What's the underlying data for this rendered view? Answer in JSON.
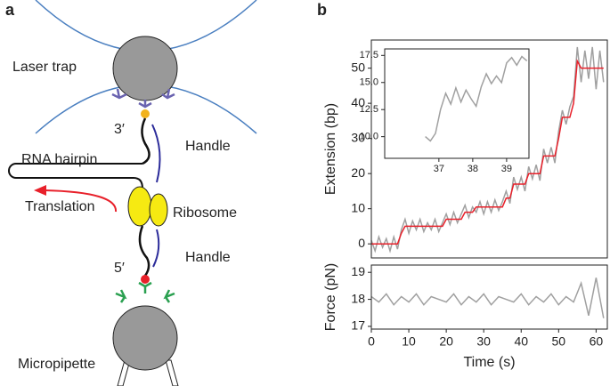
{
  "panel_labels": [
    "a",
    "b"
  ],
  "diagram": {
    "laser_trap": "Laser trap",
    "three_prime": "3′",
    "handle_top": "Handle",
    "rna_hairpin": "RNA hairpin",
    "translation": "Translation",
    "ribosome": "Ribosome",
    "handle_bottom": "Handle",
    "five_prime": "5′",
    "micropipette": "Micropipette"
  },
  "chart_data": [
    {
      "type": "line",
      "ylabel": "Extension (bp)",
      "xlim": [
        0,
        63
      ],
      "ylim": [
        -4,
        58
      ],
      "yticks": [
        0,
        10,
        20,
        30,
        40,
        50
      ],
      "x": [
        0,
        1,
        2,
        3,
        4,
        5,
        6,
        7,
        8,
        9,
        10,
        11,
        12,
        13,
        14,
        15,
        16,
        17,
        18,
        19,
        20,
        21,
        22,
        23,
        24,
        25,
        26,
        27,
        28,
        29,
        30,
        31,
        32,
        33,
        34,
        35,
        36,
        37,
        38,
        39,
        40,
        41,
        42,
        43,
        44,
        45,
        46,
        47,
        48,
        49,
        50,
        51,
        52,
        53,
        54,
        55,
        56,
        57,
        58,
        59,
        60,
        61,
        62
      ],
      "series": [
        {
          "color": "#a0a0a0",
          "values": [
            1,
            -2,
            2,
            -1,
            1.5,
            -2,
            2,
            -1.5,
            4,
            7,
            3,
            6.5,
            4,
            7,
            3.5,
            6,
            4,
            7,
            3.5,
            6,
            8.5,
            5.5,
            9,
            6,
            8.5,
            11,
            7.5,
            10.5,
            9,
            12,
            8.5,
            12,
            9,
            12.5,
            9.5,
            12,
            15,
            11.5,
            19,
            15.5,
            19,
            15,
            22,
            18.5,
            22.5,
            18,
            27,
            23,
            27.5,
            23,
            32,
            38,
            34,
            39,
            42,
            56,
            46,
            55,
            47,
            56,
            44,
            55,
            46
          ]
        },
        {
          "color": "#e8202a",
          "values": [
            0,
            0,
            0,
            0,
            0,
            0,
            0,
            0,
            3,
            5,
            5,
            5,
            5,
            5,
            5,
            5,
            5,
            5,
            5,
            5,
            7,
            7,
            7,
            7,
            7,
            9,
            9,
            9,
            10.5,
            10.5,
            10.5,
            10.5,
            10.5,
            10.5,
            10.5,
            10.5,
            13,
            13,
            17,
            17,
            17,
            17,
            20,
            20,
            20,
            20,
            25,
            25,
            25,
            25,
            30,
            36,
            36,
            36,
            40,
            52,
            50,
            50,
            50,
            50,
            50,
            50,
            50
          ]
        }
      ]
    },
    {
      "type": "line",
      "ylabel": "Force (pN)",
      "xlabel": "Time (s)",
      "xlim": [
        0,
        63
      ],
      "ylim": [
        16.9,
        19.27
      ],
      "yticks": [
        17,
        18,
        19
      ],
      "xticks": [
        0,
        10,
        20,
        30,
        40,
        50,
        60
      ],
      "x": [
        0,
        2,
        4,
        6,
        8,
        10,
        12,
        14,
        16,
        18,
        20,
        22,
        24,
        26,
        28,
        30,
        32,
        34,
        36,
        38,
        40,
        42,
        44,
        46,
        48,
        50,
        52,
        54,
        56,
        58,
        60,
        62
      ],
      "series": [
        {
          "color": "#a0a0a0",
          "values": [
            18.1,
            17.9,
            18.2,
            17.8,
            18.1,
            17.9,
            18.2,
            17.8,
            18.1,
            18.0,
            17.9,
            18.2,
            17.8,
            18.1,
            17.9,
            18.2,
            17.8,
            18.1,
            18.0,
            17.9,
            18.2,
            17.8,
            18.1,
            17.9,
            18.2,
            17.8,
            18.1,
            17.9,
            18.6,
            17.4,
            18.8,
            17.3
          ]
        }
      ]
    },
    {
      "type": "line",
      "xlim": [
        35.4,
        39.66
      ],
      "ylim": [
        8,
        18.1
      ],
      "xticks": [
        37,
        38,
        39
      ],
      "yticks": [
        {
          "value": 10,
          "label": "10.0"
        },
        12.5,
        {
          "value": 15,
          "label": "15.0"
        },
        17.5
      ],
      "x": [
        36.6,
        36.75,
        36.9,
        37.05,
        37.2,
        37.35,
        37.5,
        37.65,
        37.8,
        37.95,
        38.1,
        38.25,
        38.4,
        38.55,
        38.7,
        38.85,
        39.0,
        39.15,
        39.3,
        39.45,
        39.6
      ],
      "series": [
        {
          "color": "#a0a0a0",
          "values": [
            10,
            9.6,
            10.3,
            12.5,
            14.0,
            13.0,
            14.5,
            13.2,
            14.3,
            13.5,
            12.8,
            14.6,
            15.8,
            14.9,
            15.6,
            15.0,
            16.8,
            17.3,
            16.6,
            17.4,
            17.0
          ]
        }
      ]
    }
  ]
}
